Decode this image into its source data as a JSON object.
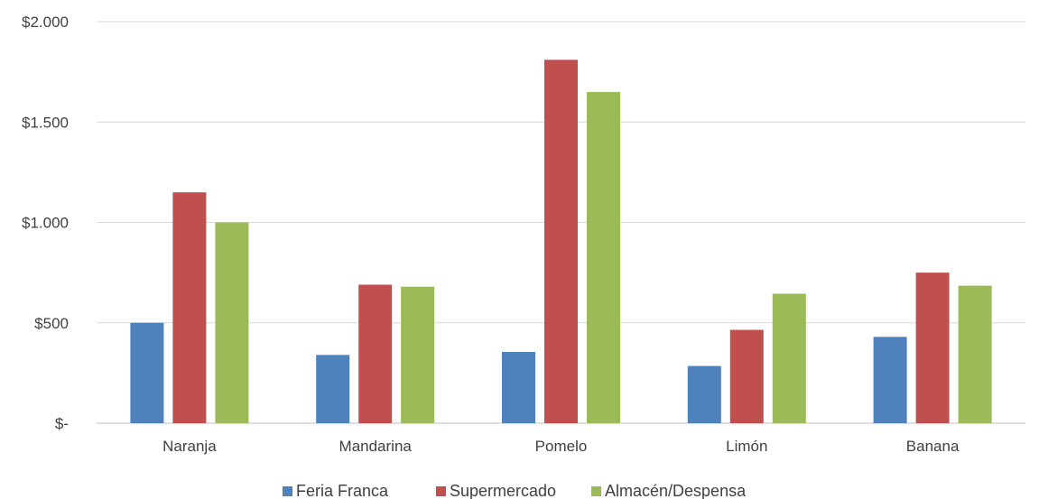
{
  "chart_data": {
    "type": "bar",
    "categories": [
      "Naranja",
      "Mandarina",
      "Pomelo",
      "Limón",
      "Banana"
    ],
    "series": [
      {
        "name": "Feria Franca",
        "color": "#4F81BD",
        "values": [
          500,
          340,
          355,
          285,
          430
        ]
      },
      {
        "name": "Supermercado",
        "color": "#C0504D",
        "values": [
          1150,
          690,
          1810,
          465,
          750
        ]
      },
      {
        "name": "Almacén/Despensa",
        "color": "#9BBB59",
        "values": [
          1000,
          680,
          1650,
          645,
          685
        ]
      }
    ],
    "ylim": [
      0,
      2000
    ],
    "yticks": [
      {
        "value": 0,
        "label": "$-"
      },
      {
        "value": 500,
        "label": "$500"
      },
      {
        "value": 1000,
        "label": "$1.000"
      },
      {
        "value": 1500,
        "label": "$1.500"
      },
      {
        "value": 2000,
        "label": "$2.000"
      }
    ],
    "grid": true,
    "legend_position": "bottom"
  }
}
